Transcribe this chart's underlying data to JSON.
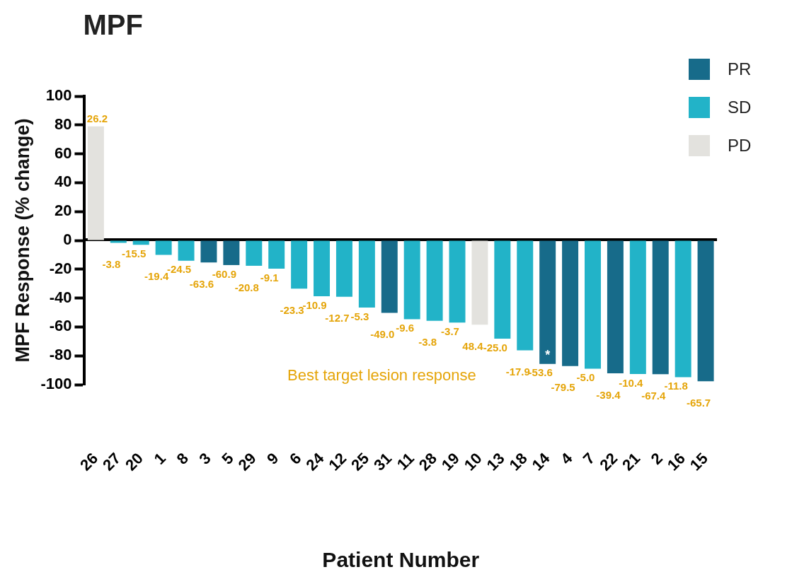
{
  "chart_data": {
    "type": "bar",
    "title": "MPF",
    "xlabel": "Patient Number",
    "ylabel": "MPF Response (% change)",
    "categories": [
      "26",
      "27",
      "20",
      "1",
      "8",
      "3",
      "5",
      "29",
      "9",
      "6",
      "24",
      "12",
      "25",
      "31",
      "11",
      "28",
      "19",
      "10",
      "13",
      "18",
      "14",
      "4",
      "7",
      "22",
      "21",
      "2",
      "16",
      "15"
    ],
    "series": [
      {
        "name": "PR",
        "color": "#176b8a",
        "values": [
          null,
          null,
          null,
          null,
          null,
          -15.3,
          -17.1,
          null,
          null,
          null,
          null,
          null,
          null,
          -50.2,
          null,
          null,
          null,
          null,
          null,
          null,
          -85.7,
          -87.1,
          null,
          -92.2,
          null,
          -92.8,
          null,
          -97.6
        ]
      },
      {
        "name": "SD",
        "color": "#22b3c8",
        "values": [
          null,
          -1.7,
          -3.1,
          -10,
          -14.1,
          null,
          null,
          -17.6,
          -19.6,
          -33.5,
          -38.7,
          -39.1,
          -46.5,
          null,
          -54.6,
          -55.8,
          -57,
          null,
          -68.1,
          -76.2,
          null,
          null,
          -89,
          null,
          -92.6,
          null,
          -94.8,
          null
        ]
      },
      {
        "name": "PD",
        "color": "#e3e2de",
        "values": [
          79,
          null,
          null,
          null,
          null,
          null,
          null,
          null,
          null,
          null,
          null,
          null,
          null,
          null,
          null,
          null,
          null,
          -58.5,
          null,
          null,
          null,
          null,
          null,
          null,
          null,
          null,
          null,
          null
        ]
      }
    ],
    "ylim": [
      -100,
      100
    ],
    "yticks": [
      -100,
      -80,
      -60,
      -40,
      -20,
      0,
      20,
      40,
      60,
      80,
      100
    ],
    "legend": "top right",
    "annotations": [
      {
        "text": "26.2",
        "x": "26",
        "y": 79
      },
      {
        "text": "-3.8",
        "x": "27",
        "y": -1.7
      },
      {
        "text": "-15.5",
        "x": "20",
        "y": -3.1
      },
      {
        "text": "-19.4",
        "x": "1",
        "y": -10
      },
      {
        "text": "-24.5",
        "x": "8",
        "y": -14.1
      },
      {
        "text": "-63.6",
        "x": "3",
        "y": -15.3
      },
      {
        "text": "-60.9",
        "x": "5",
        "y": -17.1
      },
      {
        "text": "-20.8",
        "x": "29",
        "y": -17.6
      },
      {
        "text": "-9.1",
        "x": "9",
        "y": -19.6
      },
      {
        "text": "-23.3",
        "x": "6",
        "y": -33.5
      },
      {
        "text": "-10.9",
        "x": "24",
        "y": -38.7
      },
      {
        "text": "-12.7",
        "x": "12",
        "y": -39.1
      },
      {
        "text": "-5.3",
        "x": "25",
        "y": -46.5
      },
      {
        "text": "-49.0",
        "x": "31",
        "y": -50.2
      },
      {
        "text": "-9.6",
        "x": "11",
        "y": -54.6
      },
      {
        "text": "-3.8",
        "x": "28",
        "y": -55.8
      },
      {
        "text": "-3.7",
        "x": "19",
        "y": -57
      },
      {
        "text": "48.4",
        "x": "10",
        "y": -58.5
      },
      {
        "text": "-25.0",
        "x": "13",
        "y": -68.1
      },
      {
        "text": "-17.9",
        "x": "18",
        "y": -76.2
      },
      {
        "text": "-53.6",
        "x": "14",
        "y": -85.7
      },
      {
        "text": "-79.5",
        "x": "4",
        "y": -87.1
      },
      {
        "text": "-5.0",
        "x": "7",
        "y": -89
      },
      {
        "text": "-39.4",
        "x": "22",
        "y": -92.2
      },
      {
        "text": "-10.4",
        "x": "21",
        "y": -92.6
      },
      {
        "text": "-67.4",
        "x": "2",
        "y": -92.8
      },
      {
        "text": "-11.8",
        "x": "16",
        "y": -94.8
      },
      {
        "text": "-65.7",
        "x": "15",
        "y": -97.6
      },
      {
        "text": "*",
        "x": "14",
        "y": -85.7
      },
      "Best target lesion response"
    ]
  }
}
